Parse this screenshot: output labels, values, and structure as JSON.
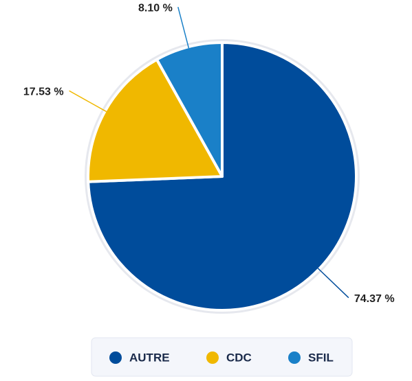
{
  "chart_data": {
    "type": "pie",
    "categories": [
      "AUTRE",
      "CDC",
      "SFIL"
    ],
    "values": [
      74.37,
      17.53,
      8.1
    ],
    "value_labels": [
      "74.37 %",
      "17.53 %",
      "8.10 %"
    ],
    "colors": [
      "#004c9b",
      "#f0b800",
      "#1a80c8"
    ]
  }
}
